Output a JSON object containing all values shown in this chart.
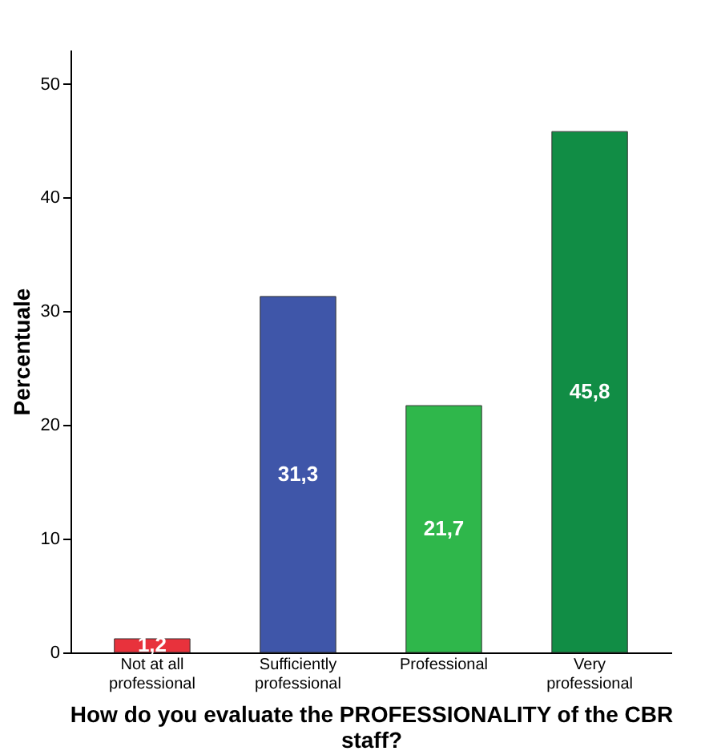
{
  "chart_data": {
    "type": "bar",
    "xlabel": "How do you evaluate the PROFESSIONALITY of the CBR staff?",
    "ylabel": "Percentuale",
    "categories": [
      "Not at all professional",
      "Sufficiently professional",
      "Professional",
      "Very professional"
    ],
    "values": [
      1.2,
      31.3,
      21.7,
      45.8
    ],
    "colors": [
      "#e8323c",
      "#3f56a9",
      "#2fb74b",
      "#118d45"
    ],
    "value_labels": [
      "1,2",
      "31,3",
      "21,7",
      "45,8"
    ],
    "ylim": [
      0,
      53
    ],
    "yticks": [
      0,
      10,
      20,
      30,
      40,
      50
    ],
    "grid": false
  }
}
